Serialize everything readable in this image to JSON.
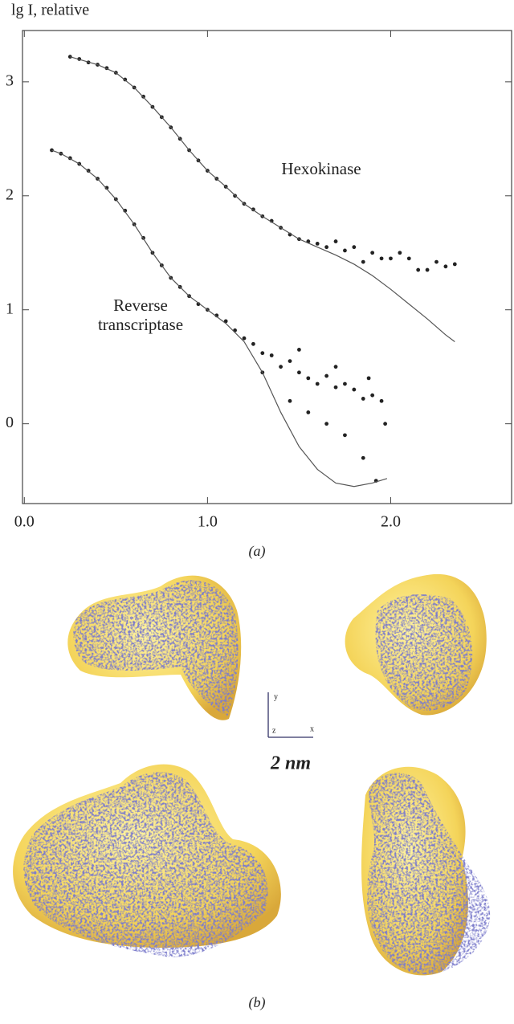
{
  "chart_data": {
    "type": "scatter",
    "ylabel": "lg I, relative",
    "xlim": [
      -0.01,
      2.66
    ],
    "ylim": [
      -0.7,
      3.45
    ],
    "xticks": [
      {
        "value": 0,
        "label": "0.0"
      },
      {
        "value": 1,
        "label": "1.0"
      },
      {
        "value": 2,
        "label": "2.0"
      }
    ],
    "yticks": [
      0,
      1,
      2,
      3
    ],
    "series": [
      {
        "name": "Hexokinase",
        "style": "markers",
        "color": "#222222",
        "x": [
          0.25,
          0.3,
          0.35,
          0.4,
          0.45,
          0.5,
          0.55,
          0.6,
          0.65,
          0.7,
          0.75,
          0.8,
          0.85,
          0.9,
          0.95,
          1.0,
          1.05,
          1.1,
          1.15,
          1.2,
          1.25,
          1.3,
          1.35,
          1.4,
          1.45,
          1.5,
          1.55,
          1.6,
          1.65,
          1.7,
          1.75,
          1.8,
          1.85,
          1.9,
          1.95,
          2.0,
          2.05,
          2.1,
          2.15,
          2.2,
          2.25,
          2.3,
          2.35
        ],
        "values": [
          3.22,
          3.2,
          3.17,
          3.15,
          3.12,
          3.08,
          3.02,
          2.95,
          2.87,
          2.78,
          2.69,
          2.6,
          2.5,
          2.4,
          2.31,
          2.22,
          2.15,
          2.08,
          2.0,
          1.93,
          1.88,
          1.82,
          1.78,
          1.72,
          1.66,
          1.62,
          1.6,
          1.58,
          1.55,
          1.6,
          1.52,
          1.55,
          1.42,
          1.5,
          1.45,
          1.45,
          1.5,
          1.45,
          1.35,
          1.35,
          1.42,
          1.38,
          1.4
        ]
      },
      {
        "style": "line",
        "color": "#555555",
        "x": [
          0.25,
          0.4,
          0.5,
          0.6,
          0.7,
          0.8,
          0.9,
          1.0,
          1.1,
          1.2,
          1.3,
          1.4,
          1.5,
          1.6,
          1.7,
          1.8,
          1.9,
          2.0,
          2.1,
          2.2,
          2.3,
          2.35
        ],
        "values": [
          3.22,
          3.15,
          3.08,
          2.95,
          2.78,
          2.6,
          2.4,
          2.22,
          2.08,
          1.93,
          1.82,
          1.72,
          1.62,
          1.55,
          1.48,
          1.4,
          1.3,
          1.18,
          1.05,
          0.92,
          0.78,
          0.72
        ]
      },
      {
        "name": "Reverse transcriptase",
        "style": "markers",
        "color": "#222222",
        "x": [
          0.15,
          0.2,
          0.25,
          0.3,
          0.35,
          0.4,
          0.45,
          0.5,
          0.55,
          0.6,
          0.65,
          0.7,
          0.75,
          0.8,
          0.85,
          0.9,
          0.95,
          1.0,
          1.05,
          1.1,
          1.15,
          1.2,
          1.25,
          1.3,
          1.35,
          1.4,
          1.45,
          1.5,
          1.55,
          1.6,
          1.65,
          1.7,
          1.75,
          1.8,
          1.85,
          1.9,
          1.95,
          1.3,
          1.45,
          1.55,
          1.65,
          1.75,
          1.85,
          1.92,
          1.97,
          1.5,
          1.7,
          1.88
        ],
        "values": [
          2.4,
          2.37,
          2.33,
          2.28,
          2.22,
          2.15,
          2.07,
          1.97,
          1.87,
          1.75,
          1.63,
          1.5,
          1.39,
          1.28,
          1.2,
          1.12,
          1.05,
          1.0,
          0.95,
          0.9,
          0.82,
          0.75,
          0.7,
          0.62,
          0.6,
          0.5,
          0.55,
          0.45,
          0.4,
          0.35,
          0.42,
          0.32,
          0.35,
          0.3,
          0.22,
          0.25,
          0.2,
          0.45,
          0.2,
          0.1,
          0.0,
          -0.1,
          -0.3,
          -0.5,
          0.0,
          0.65,
          0.5,
          0.4
        ]
      },
      {
        "style": "line",
        "color": "#555555",
        "x": [
          0.15,
          0.2,
          0.3,
          0.4,
          0.5,
          0.6,
          0.7,
          0.8,
          0.9,
          1.0,
          1.1,
          1.2,
          1.3,
          1.4,
          1.5,
          1.6,
          1.7,
          1.8,
          1.9,
          1.98
        ],
        "values": [
          2.4,
          2.37,
          2.28,
          2.15,
          1.97,
          1.75,
          1.5,
          1.28,
          1.12,
          1.0,
          0.88,
          0.72,
          0.45,
          0.1,
          -0.2,
          -0.4,
          -0.52,
          -0.55,
          -0.52,
          -0.48
        ]
      }
    ]
  },
  "figure": {
    "panel_a_label": "(a)",
    "panel_b_label": "(b)",
    "scale_bar": "2 nm",
    "axis_labels": [
      "y",
      "z",
      "x"
    ]
  }
}
